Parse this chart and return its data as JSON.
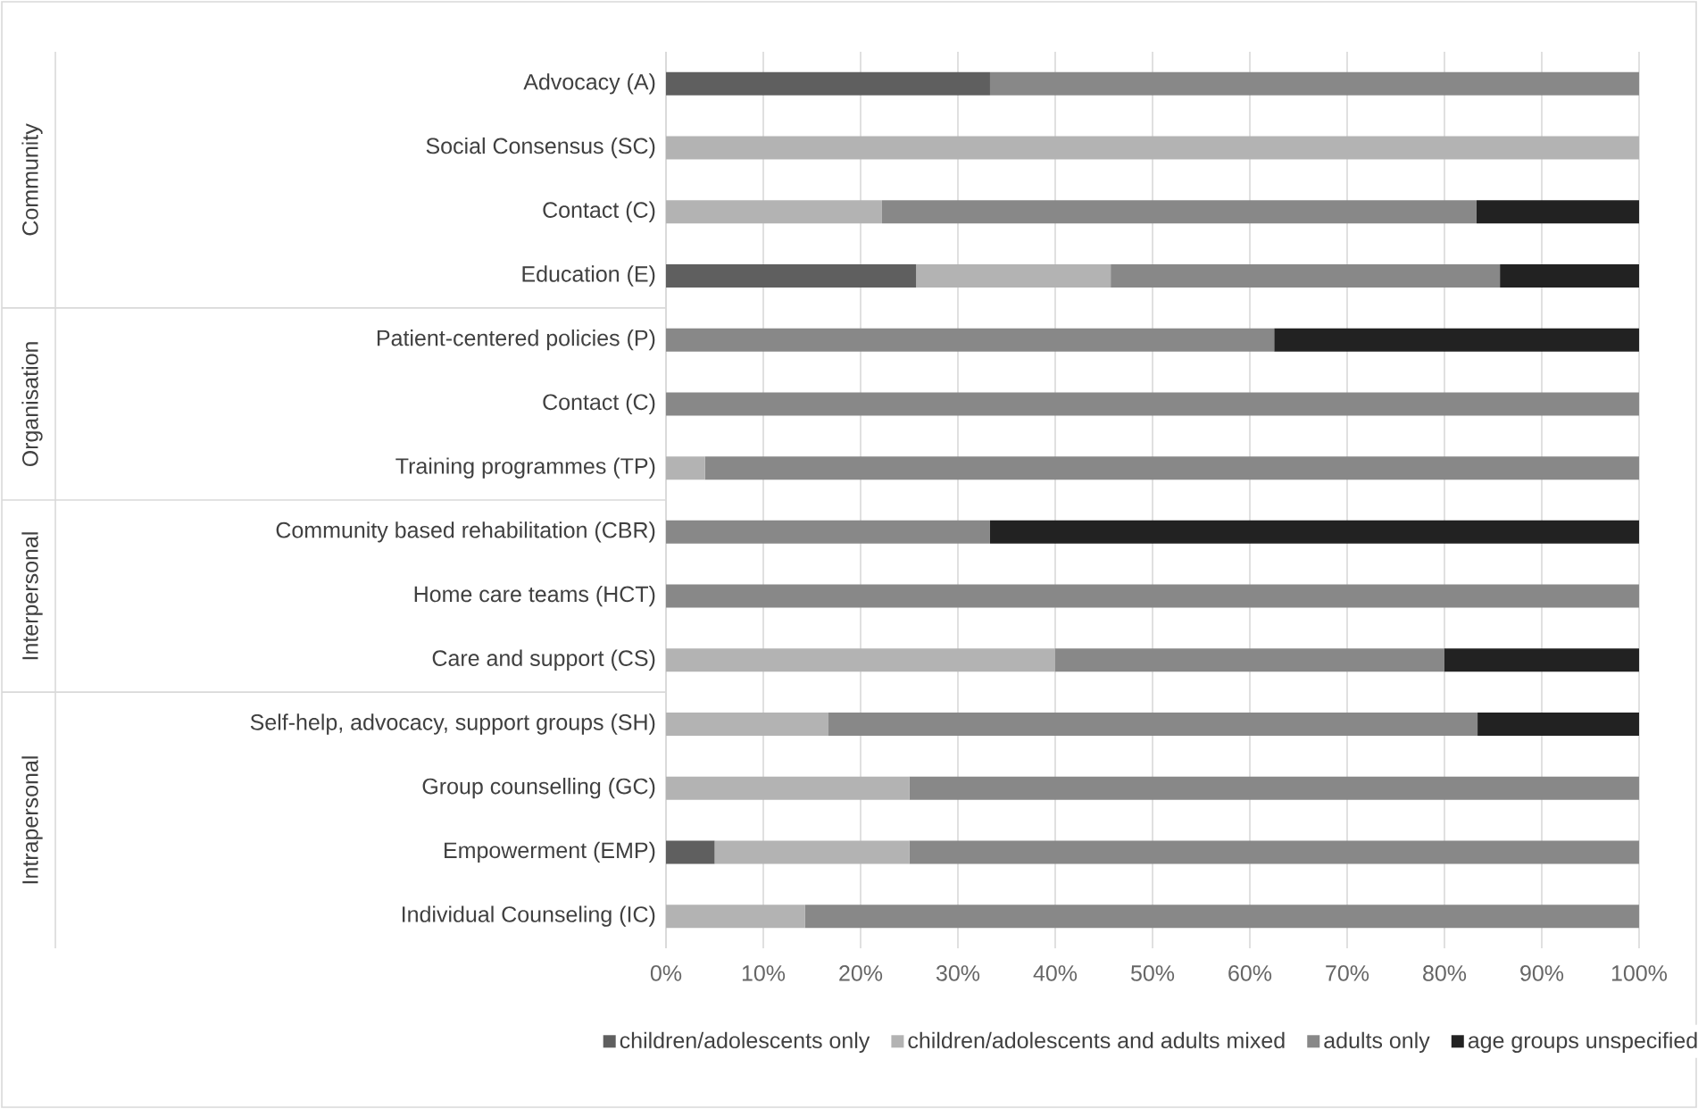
{
  "chart_data": {
    "type": "bar",
    "orientation": "horizontal",
    "stacked": true,
    "categories": [
      "Advocacy (A)",
      "Social Consensus (SC)",
      "Contact (C)",
      "Education (E)",
      "Patient-centered policies (P)",
      "Contact (C)",
      "Training programmes (TP)",
      "Community based rehabilitation (CBR)",
      "Home care teams (HCT)",
      "Care and support (CS)",
      "Self-help, advocacy, support groups (SH)",
      "Group counselling (GC)",
      "Empowerment (EMP)",
      "Individual Counseling (IC)"
    ],
    "series": [
      {
        "name": "children/adolescents only",
        "color": "#5f5f5f",
        "values": [
          33.3,
          0,
          0,
          25.7,
          0,
          0,
          0,
          0,
          0,
          0,
          0,
          0,
          5,
          0
        ]
      },
      {
        "name": "children/adolescents and adults mixed",
        "color": "#b3b3b3",
        "values": [
          0,
          100,
          22.2,
          20,
          0,
          0,
          4,
          0,
          0,
          40,
          16.7,
          25,
          20,
          14.3
        ]
      },
      {
        "name": "adults only",
        "color": "#888888",
        "values": [
          66.7,
          0,
          61.1,
          40,
          62.5,
          100,
          96,
          33.3,
          100,
          40,
          66.7,
          75,
          75,
          85.7
        ]
      },
      {
        "name": "age groups unspecified",
        "color": "#222222",
        "values": [
          0,
          0,
          16.7,
          14.3,
          37.5,
          0,
          0,
          66.7,
          0,
          20,
          16.6,
          0,
          0,
          0
        ]
      }
    ],
    "xlim": [
      0,
      100
    ],
    "xticks": [
      {
        "value": 0,
        "label": "0%"
      },
      {
        "value": 10,
        "label": "10%"
      },
      {
        "value": 20,
        "label": "20%"
      },
      {
        "value": 30,
        "label": "30%"
      },
      {
        "value": 40,
        "label": "40%"
      },
      {
        "value": 50,
        "label": "50%"
      },
      {
        "value": 60,
        "label": "60%"
      },
      {
        "value": 70,
        "label": "70%"
      },
      {
        "value": 80,
        "label": "80%"
      },
      {
        "value": 90,
        "label": "90%"
      },
      {
        "value": 100,
        "label": "100%"
      }
    ],
    "grid": "x",
    "legend": "bottom",
    "annotations": [
      "Community",
      "Organisation",
      "Interpersonal",
      "Intrapersonal"
    ]
  }
}
